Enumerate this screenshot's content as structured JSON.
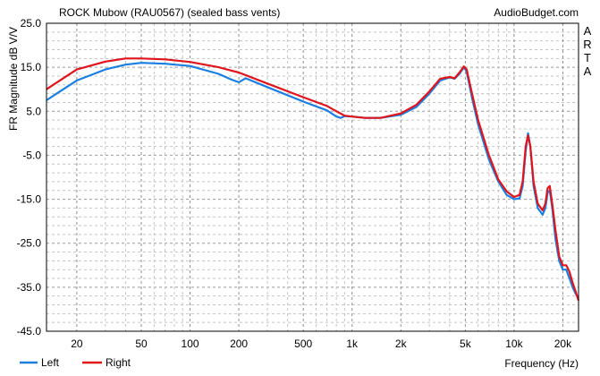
{
  "chart_data": {
    "type": "line",
    "title": "ROCK Mubow (RAU0567) (sealed bass vents)",
    "source": "AudioBudget.com",
    "side_label": "ARTA",
    "xlabel": "Frequency (Hz)",
    "ylabel": "FR Magnitude dB V/V",
    "x_scale": "log",
    "xlim": [
      13,
      25000
    ],
    "ylim": [
      -45,
      25
    ],
    "grid": true,
    "legend_position": "bottom-left",
    "x_ticks": [
      {
        "value": 20,
        "label": "20"
      },
      {
        "value": 50,
        "label": "50"
      },
      {
        "value": 100,
        "label": "100"
      },
      {
        "value": 200,
        "label": "200"
      },
      {
        "value": 500,
        "label": "500"
      },
      {
        "value": 1000,
        "label": "1k"
      },
      {
        "value": 2000,
        "label": "2k"
      },
      {
        "value": 5000,
        "label": "5k"
      },
      {
        "value": 10000,
        "label": "10k"
      },
      {
        "value": 20000,
        "label": "20k"
      }
    ],
    "y_ticks": [
      {
        "value": 25,
        "label": "25.0"
      },
      {
        "value": 15,
        "label": "15.0"
      },
      {
        "value": 5,
        "label": "5.0"
      },
      {
        "value": -5,
        "label": "-5.0"
      },
      {
        "value": -15,
        "label": "-15.0"
      },
      {
        "value": -25,
        "label": "-25.0"
      },
      {
        "value": -35,
        "label": "-35.0"
      },
      {
        "value": -45,
        "label": "-45.0"
      }
    ],
    "series": [
      {
        "name": "Left",
        "color": "#1a7fe0",
        "points": [
          [
            13,
            7.5
          ],
          [
            15,
            9
          ],
          [
            20,
            12
          ],
          [
            30,
            14.5
          ],
          [
            40,
            15.6
          ],
          [
            50,
            16
          ],
          [
            70,
            15.8
          ],
          [
            100,
            15.3
          ],
          [
            150,
            13.5
          ],
          [
            180,
            12.2
          ],
          [
            200,
            11.6
          ],
          [
            220,
            12.5
          ],
          [
            300,
            10.5
          ],
          [
            500,
            7.2
          ],
          [
            700,
            5.2
          ],
          [
            800,
            3.8
          ],
          [
            850,
            3.5
          ],
          [
            900,
            3.9
          ],
          [
            1000,
            3.8
          ],
          [
            1200,
            3.5
          ],
          [
            1500,
            3.5
          ],
          [
            2000,
            4.2
          ],
          [
            2500,
            6
          ],
          [
            3000,
            9
          ],
          [
            3500,
            12
          ],
          [
            4000,
            12.7
          ],
          [
            4300,
            12.4
          ],
          [
            4600,
            13.5
          ],
          [
            4900,
            15
          ],
          [
            5100,
            14
          ],
          [
            5500,
            8
          ],
          [
            6000,
            2
          ],
          [
            7000,
            -6
          ],
          [
            8000,
            -11
          ],
          [
            9000,
            -14
          ],
          [
            10000,
            -15
          ],
          [
            10800,
            -14.8
          ],
          [
            11300,
            -12
          ],
          [
            11800,
            -4
          ],
          [
            12200,
            0
          ],
          [
            12600,
            -3
          ],
          [
            13200,
            -12
          ],
          [
            14000,
            -17
          ],
          [
            15000,
            -18.5
          ],
          [
            15600,
            -17
          ],
          [
            16100,
            -13.5
          ],
          [
            16600,
            -13
          ],
          [
            17200,
            -17
          ],
          [
            18000,
            -24
          ],
          [
            19000,
            -29
          ],
          [
            20000,
            -31
          ],
          [
            21000,
            -31
          ],
          [
            22000,
            -33
          ],
          [
            23000,
            -35
          ],
          [
            24000,
            -36.5
          ],
          [
            25000,
            -37.5
          ]
        ]
      },
      {
        "name": "Right",
        "color": "#e0141c",
        "points": [
          [
            13,
            10
          ],
          [
            15,
            11.5
          ],
          [
            20,
            14.5
          ],
          [
            30,
            16.3
          ],
          [
            40,
            17
          ],
          [
            50,
            17
          ],
          [
            70,
            16.8
          ],
          [
            100,
            16.2
          ],
          [
            150,
            15
          ],
          [
            200,
            13.8
          ],
          [
            300,
            11.3
          ],
          [
            500,
            8.2
          ],
          [
            700,
            6.2
          ],
          [
            800,
            5
          ],
          [
            900,
            4
          ],
          [
            1000,
            3.8
          ],
          [
            1200,
            3.5
          ],
          [
            1500,
            3.5
          ],
          [
            2000,
            4.5
          ],
          [
            2500,
            6.5
          ],
          [
            3000,
            9.5
          ],
          [
            3500,
            12.4
          ],
          [
            4000,
            12.8
          ],
          [
            4300,
            12.5
          ],
          [
            4600,
            13.8
          ],
          [
            4900,
            15.2
          ],
          [
            5100,
            14.5
          ],
          [
            5500,
            9
          ],
          [
            6000,
            3
          ],
          [
            7000,
            -5
          ],
          [
            8000,
            -10.5
          ],
          [
            9000,
            -13.2
          ],
          [
            10000,
            -14.5
          ],
          [
            10800,
            -14
          ],
          [
            11300,
            -11
          ],
          [
            11800,
            -3
          ],
          [
            12200,
            -0.5
          ],
          [
            12600,
            -3
          ],
          [
            13200,
            -11
          ],
          [
            14000,
            -16
          ],
          [
            15000,
            -17.5
          ],
          [
            15600,
            -16
          ],
          [
            16100,
            -12.5
          ],
          [
            16600,
            -12
          ],
          [
            17200,
            -16
          ],
          [
            18000,
            -22
          ],
          [
            19000,
            -28
          ],
          [
            20000,
            -30
          ],
          [
            21000,
            -30
          ],
          [
            22000,
            -31.5
          ],
          [
            23000,
            -34
          ],
          [
            24000,
            -36
          ],
          [
            25000,
            -38
          ]
        ]
      }
    ]
  }
}
